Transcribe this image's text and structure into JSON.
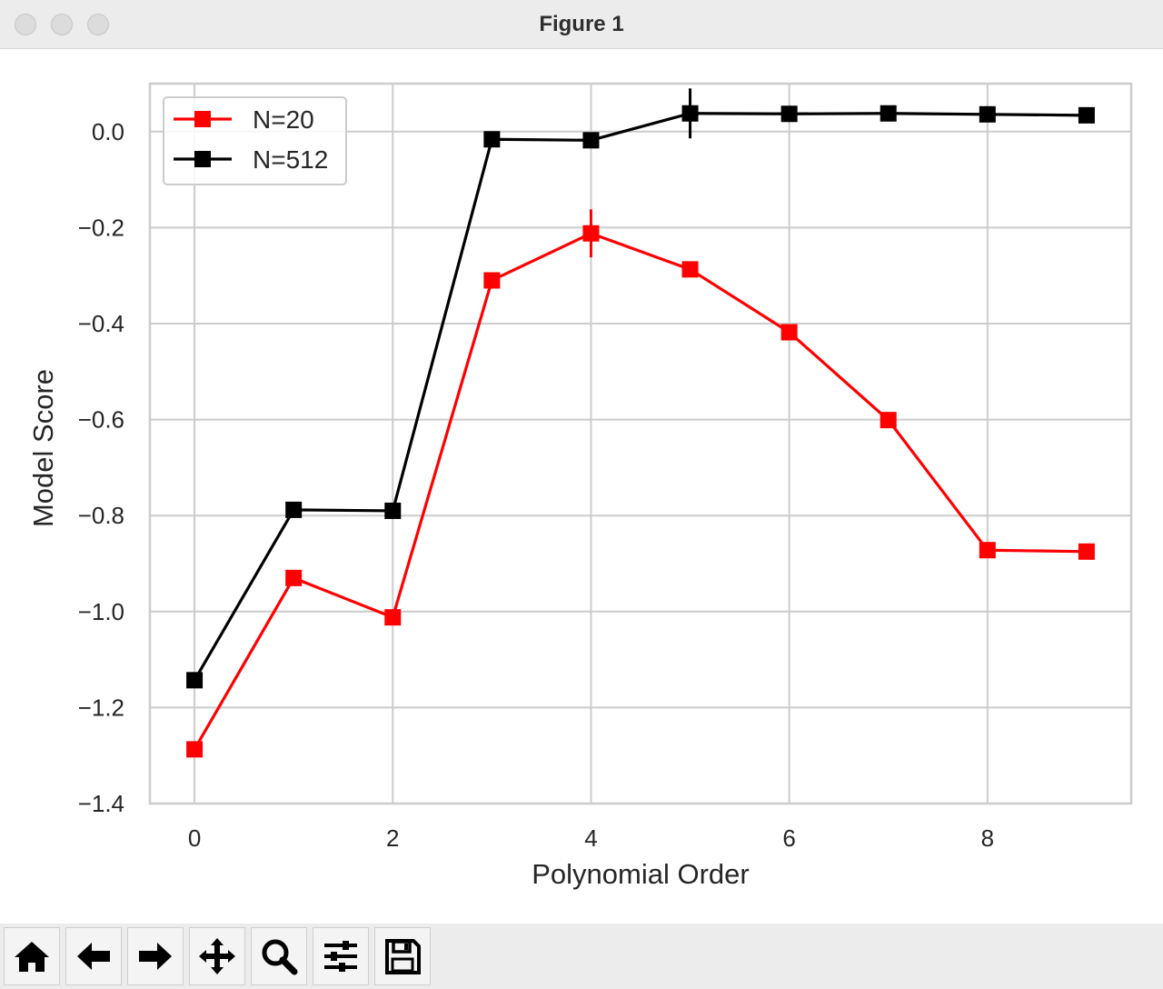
{
  "window": {
    "title": "Figure 1"
  },
  "toolbar": {
    "buttons": [
      {
        "name": "home-button",
        "icon": "home-icon"
      },
      {
        "name": "back-button",
        "icon": "arrow-left-icon"
      },
      {
        "name": "forward-button",
        "icon": "arrow-right-icon"
      },
      {
        "name": "pan-button",
        "icon": "move-icon"
      },
      {
        "name": "zoom-button",
        "icon": "magnifier-icon"
      },
      {
        "name": "configure-subplots-button",
        "icon": "sliders-icon"
      },
      {
        "name": "save-button",
        "icon": "floppy-disk-icon"
      }
    ]
  },
  "chart_data": {
    "type": "line",
    "xlabel": "Polynomial Order",
    "ylabel": "Model Score",
    "xlim": [
      -0.45,
      9.45
    ],
    "ylim": [
      -1.4,
      0.1
    ],
    "xticks": [
      0,
      2,
      4,
      6,
      8
    ],
    "xtick_labels": [
      "0",
      "2",
      "4",
      "6",
      "8"
    ],
    "yticks": [
      0.0,
      -0.2,
      -0.4,
      -0.6,
      -0.8,
      -1.0,
      -1.2,
      -1.4
    ],
    "ytick_labels": [
      "0.0",
      "−0.2",
      "−0.4",
      "−0.6",
      "−0.8",
      "−1.0",
      "−1.2",
      "−1.4"
    ],
    "grid": true,
    "legend_position": "top-left",
    "x": [
      0,
      1,
      2,
      3,
      4,
      5,
      6,
      7,
      8,
      9
    ],
    "series": [
      {
        "name": "N=20",
        "color": "#ff0000",
        "marker": "square",
        "values": [
          -1.287,
          -0.93,
          -1.012,
          -0.31,
          -0.212,
          -0.287,
          -0.418,
          -0.601,
          -0.872,
          -0.875
        ],
        "errors": [
          0,
          0,
          0,
          0,
          0.05,
          0,
          0,
          0,
          0,
          0
        ]
      },
      {
        "name": "N=512",
        "color": "#000000",
        "marker": "square",
        "values": [
          -1.143,
          -0.788,
          -0.79,
          -0.016,
          -0.018,
          0.038,
          0.037,
          0.038,
          0.036,
          0.034
        ],
        "errors": [
          0,
          0,
          0,
          0,
          0,
          0.052,
          0,
          0,
          0,
          0
        ]
      }
    ]
  }
}
